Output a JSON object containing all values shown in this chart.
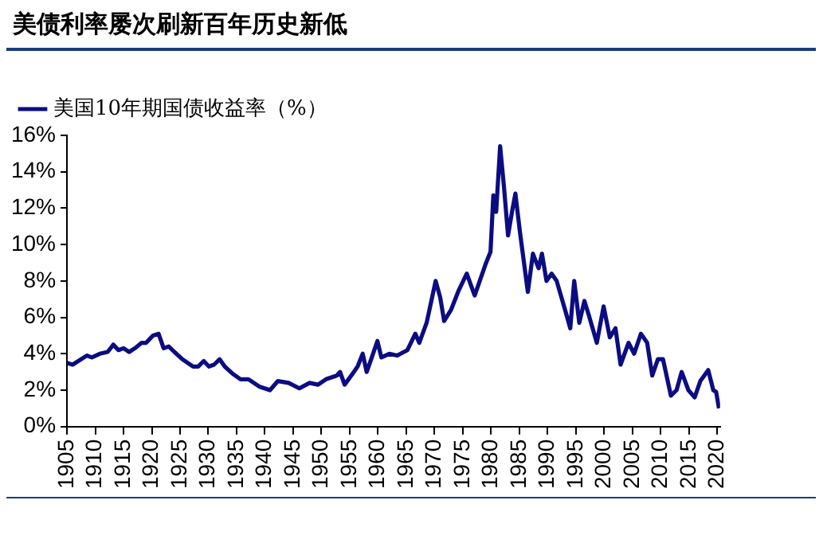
{
  "chart_data": {
    "type": "line",
    "title": "美债利率屡次刷新百年历史新低",
    "x": [
      1905,
      1906,
      1908.5,
      1909.4,
      1910.8,
      1912.2,
      1913.2,
      1914.1,
      1915,
      1916,
      1917,
      1918.2,
      1919,
      1920.2,
      1921.2,
      1922.1,
      1923,
      1924,
      1925.4,
      1927.3,
      1928.2,
      1929.2,
      1930.1,
      1931,
      1932,
      1932.9,
      1934.3,
      1935.7,
      1937.1,
      1939,
      1940.9,
      1942.3,
      1944.2,
      1946.1,
      1947.9,
      1949.4,
      1950.8,
      1952.7,
      1953.3,
      1954.1,
      1955.5,
      1956.4,
      1957.3,
      1958,
      1958.8,
      1959.9,
      1960.6,
      1962,
      1963.4,
      1965.2,
      1966.6,
      1967.3,
      1968.6,
      1970.2,
      1971,
      1971.7,
      1972.9,
      1974.3,
      1975.7,
      1977.1,
      1979,
      1979.9,
      1980.4,
      1980.9,
      1981.6,
      1982.3,
      1983,
      1983.7,
      1984.3,
      1985.1,
      1986.5,
      1987.4,
      1988.4,
      1989,
      1989.8,
      1990.7,
      1991.6,
      1993.1,
      1994,
      1994.7,
      1995.6,
      1996.5,
      1997.3,
      1998.7,
      1999.9,
      2001,
      2002,
      2002.9,
      2004.3,
      2005.3,
      2006.5,
      2007.6,
      2008.5,
      2009.5,
      2010.4,
      2011.8,
      2012.8,
      2013.7,
      2014.9,
      2016,
      2017,
      2018.4,
      2019.3,
      2019.8,
      2020.3
    ],
    "series": [
      {
        "name": "美国10年期国债收益率（%）",
        "color": "#0c0c82",
        "values": [
          3.5,
          3.4,
          3.9,
          3.8,
          4.0,
          4.1,
          4.5,
          4.2,
          4.3,
          4.1,
          4.3,
          4.6,
          4.6,
          5.0,
          5.1,
          4.3,
          4.4,
          4.1,
          3.7,
          3.3,
          3.3,
          3.6,
          3.3,
          3.4,
          3.7,
          3.3,
          2.9,
          2.6,
          2.6,
          2.2,
          2.0,
          2.5,
          2.4,
          2.1,
          2.4,
          2.3,
          2.6,
          2.8,
          3.0,
          2.3,
          2.9,
          3.3,
          4.0,
          3.0,
          3.7,
          4.7,
          3.8,
          4.0,
          3.9,
          4.2,
          5.1,
          4.6,
          5.7,
          8.0,
          7.1,
          5.8,
          6.4,
          7.5,
          8.4,
          7.2,
          8.9,
          9.6,
          12.7,
          11.8,
          15.4,
          13.1,
          10.5,
          11.8,
          12.8,
          10.7,
          7.4,
          9.5,
          8.7,
          9.5,
          8.0,
          8.4,
          8.0,
          6.4,
          5.4,
          8.0,
          5.7,
          6.9,
          6.1,
          4.6,
          6.6,
          4.9,
          5.4,
          3.4,
          4.6,
          4.0,
          5.1,
          4.6,
          2.8,
          3.7,
          3.7,
          1.7,
          2.0,
          3.0,
          2.0,
          1.6,
          2.5,
          3.1,
          2.0,
          1.9,
          1.0
        ]
      }
    ],
    "xlim": [
      1905,
      2020.5
    ],
    "xticks": [
      1905,
      1910,
      1915,
      1920,
      1925,
      1930,
      1935,
      1940,
      1945,
      1950,
      1955,
      1960,
      1965,
      1970,
      1975,
      1980,
      1985,
      1990,
      1995,
      2000,
      2005,
      2010,
      2015,
      2020
    ],
    "ylim": [
      0,
      16
    ],
    "yticks": [
      {
        "value": 0,
        "label": "0%"
      },
      {
        "value": 2,
        "label": "2%"
      },
      {
        "value": 4,
        "label": "4%"
      },
      {
        "value": 6,
        "label": "6%"
      },
      {
        "value": 8,
        "label": "8%"
      },
      {
        "value": 10,
        "label": "10%"
      },
      {
        "value": 12,
        "label": "12%"
      },
      {
        "value": 14,
        "label": "14%"
      },
      {
        "value": 16,
        "label": "16%"
      }
    ],
    "grid": false,
    "legend": "top",
    "marker": "none",
    "line_style": "solid"
  }
}
